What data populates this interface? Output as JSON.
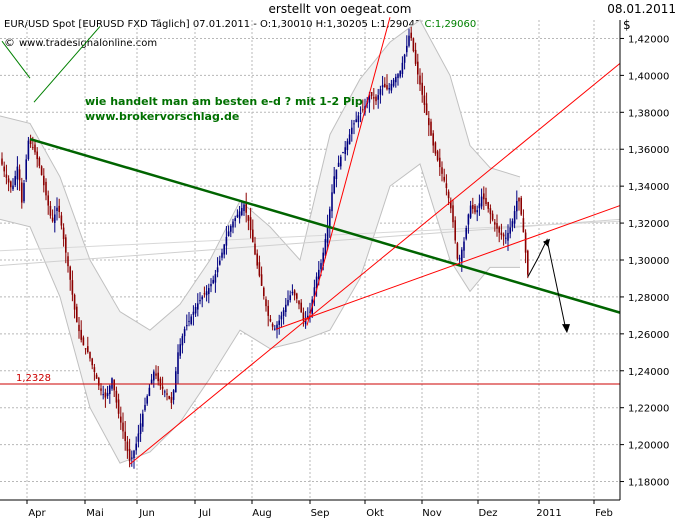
{
  "header": {
    "title": "erstellt von oegeat.com",
    "date": "08.01.2011",
    "instrument": "EUR/USD Spot [EURUSD FXD  Täglich] 07.01.2011 - O:1,30010 H:1,30205 L:1,29042",
    "close_label": "C:1,29060",
    "copyright_symbol": "©",
    "source": "www.tradesignalonline.com",
    "currency_symbol": "$"
  },
  "annotations": {
    "line1": "wie handelt man am besten e-d ? mit 1-2 Pip",
    "line2": "www.brokervorschlag.de"
  },
  "colors": {
    "grid": "#b8b8b8",
    "candle": "#000080",
    "candle_down": "#8b0000",
    "band_fill": "#f2f2f2",
    "band_line": "#c0c0c0",
    "green_trend": "#006400",
    "red_lines": "#ff0000",
    "level_line": "#cc0000",
    "close_text": "#008000"
  },
  "chart_data": {
    "type": "candlestick",
    "title": "EUR/USD Spot",
    "y_axis": {
      "min": 1.17,
      "max": 1.43,
      "ticks": [
        "1,18000",
        "1,20000",
        "1,22000",
        "1,24000",
        "1,26000",
        "1,28000",
        "1,30000",
        "1,32000",
        "1,34000",
        "1,36000",
        "1,38000",
        "1,40000",
        "1,42000"
      ],
      "tick_values": [
        1.18,
        1.2,
        1.22,
        1.24,
        1.26,
        1.28,
        1.3,
        1.32,
        1.34,
        1.36,
        1.38,
        1.4,
        1.42
      ]
    },
    "x_axis": {
      "labels": [
        "Apr",
        "Mai",
        "Jun",
        "Jul",
        "Aug",
        "Sep",
        "Okt",
        "Nov",
        "Dez",
        "2011",
        "Feb"
      ]
    },
    "price_path": [
      [
        0,
        1.355
      ],
      [
        6,
        1.345
      ],
      [
        12,
        1.338
      ],
      [
        18,
        1.352
      ],
      [
        22,
        1.33
      ],
      [
        28,
        1.365
      ],
      [
        34,
        1.36
      ],
      [
        40,
        1.35
      ],
      [
        46,
        1.335
      ],
      [
        52,
        1.32
      ],
      [
        58,
        1.33
      ],
      [
        64,
        1.31
      ],
      [
        70,
        1.29
      ],
      [
        76,
        1.268
      ],
      [
        82,
        1.255
      ],
      [
        88,
        1.25
      ],
      [
        94,
        1.24
      ],
      [
        100,
        1.23
      ],
      [
        106,
        1.225
      ],
      [
        112,
        1.236
      ],
      [
        118,
        1.218
      ],
      [
        124,
        1.205
      ],
      [
        130,
        1.19
      ],
      [
        136,
        1.2
      ],
      [
        142,
        1.215
      ],
      [
        148,
        1.228
      ],
      [
        154,
        1.24
      ],
      [
        160,
        1.232
      ],
      [
        166,
        1.228
      ],
      [
        172,
        1.222
      ],
      [
        178,
        1.25
      ],
      [
        184,
        1.262
      ],
      [
        190,
        1.268
      ],
      [
        196,
        1.275
      ],
      [
        202,
        1.28
      ],
      [
        208,
        1.284
      ],
      [
        214,
        1.29
      ],
      [
        220,
        1.3
      ],
      [
        226,
        1.312
      ],
      [
        232,
        1.32
      ],
      [
        238,
        1.325
      ],
      [
        244,
        1.33
      ],
      [
        250,
        1.318
      ],
      [
        256,
        1.3
      ],
      [
        262,
        1.285
      ],
      [
        268,
        1.27
      ],
      [
        274,
        1.262
      ],
      [
        280,
        1.268
      ],
      [
        286,
        1.276
      ],
      [
        292,
        1.283
      ],
      [
        298,
        1.278
      ],
      [
        304,
        1.266
      ],
      [
        310,
        1.272
      ],
      [
        316,
        1.29
      ],
      [
        322,
        1.3
      ],
      [
        328,
        1.32
      ],
      [
        334,
        1.345
      ],
      [
        340,
        1.355
      ],
      [
        346,
        1.362
      ],
      [
        352,
        1.372
      ],
      [
        358,
        1.378
      ],
      [
        364,
        1.382
      ],
      [
        370,
        1.39
      ],
      [
        376,
        1.386
      ],
      [
        382,
        1.395
      ],
      [
        388,
        1.392
      ],
      [
        394,
        1.398
      ],
      [
        400,
        1.402
      ],
      [
        406,
        1.414
      ],
      [
        410,
        1.424
      ],
      [
        416,
        1.405
      ],
      [
        422,
        1.39
      ],
      [
        428,
        1.375
      ],
      [
        434,
        1.36
      ],
      [
        440,
        1.35
      ],
      [
        446,
        1.34
      ],
      [
        452,
        1.325
      ],
      [
        458,
        1.298
      ],
      [
        464,
        1.31
      ],
      [
        470,
        1.33
      ],
      [
        476,
        1.325
      ],
      [
        482,
        1.335
      ],
      [
        488,
        1.328
      ],
      [
        494,
        1.32
      ],
      [
        500,
        1.314
      ],
      [
        506,
        1.312
      ],
      [
        512,
        1.32
      ],
      [
        518,
        1.335
      ],
      [
        522,
        1.322
      ],
      [
        526,
        1.302
      ],
      [
        528,
        1.291
      ]
    ],
    "bollinger_band": {
      "upper": [
        [
          0,
          1.378
        ],
        [
          30,
          1.374
        ],
        [
          60,
          1.345
        ],
        [
          90,
          1.3
        ],
        [
          120,
          1.272
        ],
        [
          150,
          1.262
        ],
        [
          180,
          1.276
        ],
        [
          210,
          1.3
        ],
        [
          240,
          1.332
        ],
        [
          270,
          1.318
        ],
        [
          300,
          1.3
        ],
        [
          330,
          1.368
        ],
        [
          360,
          1.398
        ],
        [
          390,
          1.418
        ],
        [
          420,
          1.43
        ],
        [
          450,
          1.4
        ],
        [
          470,
          1.362
        ],
        [
          490,
          1.35
        ],
        [
          520,
          1.345
        ]
      ],
      "lower": [
        [
          0,
          1.322
        ],
        [
          30,
          1.318
        ],
        [
          60,
          1.28
        ],
        [
          90,
          1.22
        ],
        [
          120,
          1.19
        ],
        [
          150,
          1.196
        ],
        [
          180,
          1.212
        ],
        [
          210,
          1.236
        ],
        [
          240,
          1.262
        ],
        [
          270,
          1.252
        ],
        [
          300,
          1.256
        ],
        [
          330,
          1.262
        ],
        [
          360,
          1.29
        ],
        [
          390,
          1.34
        ],
        [
          420,
          1.352
        ],
        [
          450,
          1.3
        ],
        [
          470,
          1.283
        ],
        [
          490,
          1.296
        ],
        [
          520,
          1.296
        ]
      ]
    },
    "level_label": "1,2328",
    "level_value": 1.2328
  }
}
